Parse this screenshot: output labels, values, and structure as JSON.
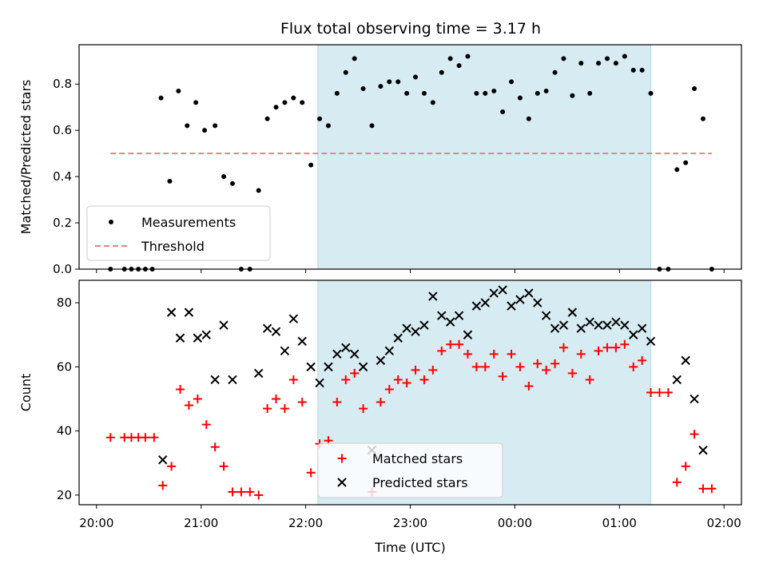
{
  "title": "Flux total observing time = 3.17 h",
  "chart_data": [
    {
      "type": "scatter",
      "ylabel": "Matched/Predicted stars",
      "ylim": [
        0,
        0.97
      ],
      "yticks": [
        0.0,
        0.2,
        0.4,
        0.6,
        0.8
      ],
      "ytick_labels": [
        "0.0",
        "0.2",
        "0.4",
        "0.6",
        "0.8"
      ],
      "xlim": [
        "19:50",
        "02:10"
      ],
      "xticks": [
        "20:00",
        "21:00",
        "22:00",
        "23:00",
        "00:00",
        "01:00",
        "02:00"
      ],
      "shaded_span": [
        "22:07",
        "01:18"
      ],
      "threshold": {
        "name": "Threshold",
        "value": 0.5,
        "x": [
          "20:08",
          "01:53"
        ],
        "color": "#f08080",
        "style": "dashed"
      },
      "legend_position": "lower-left",
      "series": [
        {
          "name": "Measurements",
          "color": "#000000",
          "marker": "dot",
          "points": [
            [
              "20:08",
              0.0
            ],
            [
              "20:16",
              0.0
            ],
            [
              "20:20",
              0.0
            ],
            [
              "20:24",
              0.0
            ],
            [
              "20:28",
              0.0
            ],
            [
              "20:32",
              0.0
            ],
            [
              "20:37",
              0.74
            ],
            [
              "20:42",
              0.38
            ],
            [
              "20:47",
              0.77
            ],
            [
              "20:52",
              0.62
            ],
            [
              "20:57",
              0.72
            ],
            [
              "21:02",
              0.6
            ],
            [
              "21:08",
              0.62
            ],
            [
              "21:13",
              0.4
            ],
            [
              "21:18",
              0.37
            ],
            [
              "21:23",
              0.0
            ],
            [
              "21:28",
              0.0
            ],
            [
              "21:33",
              0.34
            ],
            [
              "21:38",
              0.65
            ],
            [
              "21:43",
              0.7
            ],
            [
              "21:48",
              0.72
            ],
            [
              "21:53",
              0.74
            ],
            [
              "21:58",
              0.72
            ],
            [
              "22:03",
              0.45
            ],
            [
              "22:08",
              0.65
            ],
            [
              "22:13",
              0.62
            ],
            [
              "22:18",
              0.76
            ],
            [
              "22:23",
              0.85
            ],
            [
              "22:28",
              0.91
            ],
            [
              "22:33",
              0.78
            ],
            [
              "22:38",
              0.62
            ],
            [
              "22:43",
              0.79
            ],
            [
              "22:48",
              0.81
            ],
            [
              "22:53",
              0.81
            ],
            [
              "22:58",
              0.76
            ],
            [
              "23:03",
              0.83
            ],
            [
              "23:08",
              0.76
            ],
            [
              "23:13",
              0.72
            ],
            [
              "23:18",
              0.85
            ],
            [
              "23:23",
              0.91
            ],
            [
              "23:28",
              0.88
            ],
            [
              "23:33",
              0.92
            ],
            [
              "23:38",
              0.76
            ],
            [
              "23:43",
              0.76
            ],
            [
              "23:48",
              0.77
            ],
            [
              "23:53",
              0.68
            ],
            [
              "23:58",
              0.81
            ],
            [
              "00:03",
              0.74
            ],
            [
              "00:08",
              0.65
            ],
            [
              "00:13",
              0.76
            ],
            [
              "00:18",
              0.77
            ],
            [
              "00:23",
              0.85
            ],
            [
              "00:28",
              0.91
            ],
            [
              "00:33",
              0.75
            ],
            [
              "00:38",
              0.89
            ],
            [
              "00:43",
              0.76
            ],
            [
              "00:48",
              0.89
            ],
            [
              "00:53",
              0.91
            ],
            [
              "00:58",
              0.89
            ],
            [
              "01:03",
              0.92
            ],
            [
              "01:08",
              0.86
            ],
            [
              "01:13",
              0.86
            ],
            [
              "01:18",
              0.76
            ],
            [
              "01:23",
              0.0
            ],
            [
              "01:28",
              0.0
            ],
            [
              "01:33",
              0.43
            ],
            [
              "01:38",
              0.46
            ],
            [
              "01:43",
              0.78
            ],
            [
              "01:48",
              0.65
            ],
            [
              "01:53",
              0.0
            ]
          ]
        }
      ]
    },
    {
      "type": "scatter",
      "xlabel": "Time (UTC)",
      "ylabel": "Count",
      "ylim": [
        17,
        87
      ],
      "yticks": [
        20,
        40,
        60,
        80
      ],
      "ytick_labels": [
        "20",
        "40",
        "60",
        "80"
      ],
      "xlim": [
        "19:50",
        "02:10"
      ],
      "xticks": [
        "20:00",
        "21:00",
        "22:00",
        "23:00",
        "00:00",
        "01:00",
        "02:00"
      ],
      "shaded_span": [
        "22:07",
        "01:18"
      ],
      "legend_position": "lower-center",
      "series": [
        {
          "name": "Matched stars",
          "color": "#ff0000",
          "marker": "plus",
          "points": [
            [
              "20:08",
              38
            ],
            [
              "20:16",
              38
            ],
            [
              "20:20",
              38
            ],
            [
              "20:24",
              38
            ],
            [
              "20:28",
              38
            ],
            [
              "20:33",
              38
            ],
            [
              "20:38",
              23
            ],
            [
              "20:43",
              29
            ],
            [
              "20:48",
              53
            ],
            [
              "20:53",
              48
            ],
            [
              "20:58",
              50
            ],
            [
              "21:03",
              42
            ],
            [
              "21:08",
              35
            ],
            [
              "21:13",
              29
            ],
            [
              "21:18",
              21
            ],
            [
              "21:23",
              21
            ],
            [
              "21:28",
              21
            ],
            [
              "21:33",
              20
            ],
            [
              "21:38",
              47
            ],
            [
              "21:43",
              50
            ],
            [
              "21:48",
              47
            ],
            [
              "21:53",
              56
            ],
            [
              "21:58",
              49
            ],
            [
              "22:03",
              27
            ],
            [
              "22:08",
              36
            ],
            [
              "22:13",
              37
            ],
            [
              "22:18",
              49
            ],
            [
              "22:23",
              56
            ],
            [
              "22:28",
              58
            ],
            [
              "22:33",
              47
            ],
            [
              "22:38",
              21
            ],
            [
              "22:43",
              49
            ],
            [
              "22:48",
              53
            ],
            [
              "22:53",
              56
            ],
            [
              "22:58",
              55
            ],
            [
              "23:03",
              59
            ],
            [
              "23:08",
              56
            ],
            [
              "23:13",
              59
            ],
            [
              "23:18",
              65
            ],
            [
              "23:23",
              67
            ],
            [
              "23:28",
              67
            ],
            [
              "23:33",
              64
            ],
            [
              "23:38",
              60
            ],
            [
              "23:43",
              60
            ],
            [
              "23:48",
              64
            ],
            [
              "23:53",
              57
            ],
            [
              "23:58",
              64
            ],
            [
              "00:03",
              60
            ],
            [
              "00:08",
              54
            ],
            [
              "00:13",
              61
            ],
            [
              "00:18",
              59
            ],
            [
              "00:23",
              61
            ],
            [
              "00:28",
              66
            ],
            [
              "00:33",
              58
            ],
            [
              "00:38",
              64
            ],
            [
              "00:43",
              56
            ],
            [
              "00:48",
              65
            ],
            [
              "00:53",
              66
            ],
            [
              "00:58",
              66
            ],
            [
              "01:03",
              67
            ],
            [
              "01:08",
              60
            ],
            [
              "01:13",
              62
            ],
            [
              "01:18",
              52
            ],
            [
              "01:23",
              52
            ],
            [
              "01:28",
              52
            ],
            [
              "01:33",
              24
            ],
            [
              "01:38",
              29
            ],
            [
              "01:43",
              39
            ],
            [
              "01:48",
              22
            ],
            [
              "01:53",
              22
            ]
          ]
        },
        {
          "name": "Predicted stars",
          "color": "#000000",
          "marker": "x",
          "points": [
            [
              "20:38",
              31
            ],
            [
              "20:43",
              77
            ],
            [
              "20:48",
              69
            ],
            [
              "20:53",
              77
            ],
            [
              "20:58",
              69
            ],
            [
              "21:03",
              70
            ],
            [
              "21:08",
              56
            ],
            [
              "21:13",
              73
            ],
            [
              "21:18",
              56
            ],
            [
              "21:33",
              58
            ],
            [
              "21:38",
              72
            ],
            [
              "21:43",
              71
            ],
            [
              "21:48",
              65
            ],
            [
              "21:53",
              75
            ],
            [
              "21:58",
              68
            ],
            [
              "22:03",
              60
            ],
            [
              "22:08",
              55
            ],
            [
              "22:13",
              60
            ],
            [
              "22:18",
              64
            ],
            [
              "22:23",
              66
            ],
            [
              "22:28",
              64
            ],
            [
              "22:33",
              60
            ],
            [
              "22:38",
              34
            ],
            [
              "22:43",
              62
            ],
            [
              "22:48",
              65
            ],
            [
              "22:53",
              69
            ],
            [
              "22:58",
              72
            ],
            [
              "23:03",
              71
            ],
            [
              "23:08",
              73
            ],
            [
              "23:13",
              82
            ],
            [
              "23:18",
              76
            ],
            [
              "23:23",
              74
            ],
            [
              "23:28",
              76
            ],
            [
              "23:33",
              70
            ],
            [
              "23:38",
              79
            ],
            [
              "23:43",
              80
            ],
            [
              "23:48",
              83
            ],
            [
              "23:53",
              84
            ],
            [
              "23:58",
              79
            ],
            [
              "00:03",
              81
            ],
            [
              "00:08",
              83
            ],
            [
              "00:13",
              80
            ],
            [
              "00:18",
              76
            ],
            [
              "00:23",
              72
            ],
            [
              "00:28",
              73
            ],
            [
              "00:33",
              77
            ],
            [
              "00:38",
              72
            ],
            [
              "00:43",
              74
            ],
            [
              "00:48",
              73
            ],
            [
              "00:53",
              73
            ],
            [
              "00:58",
              74
            ],
            [
              "01:03",
              73
            ],
            [
              "01:08",
              70
            ],
            [
              "01:13",
              72
            ],
            [
              "01:18",
              68
            ],
            [
              "01:33",
              56
            ],
            [
              "01:38",
              62
            ],
            [
              "01:43",
              50
            ],
            [
              "01:48",
              34
            ]
          ]
        }
      ]
    }
  ]
}
